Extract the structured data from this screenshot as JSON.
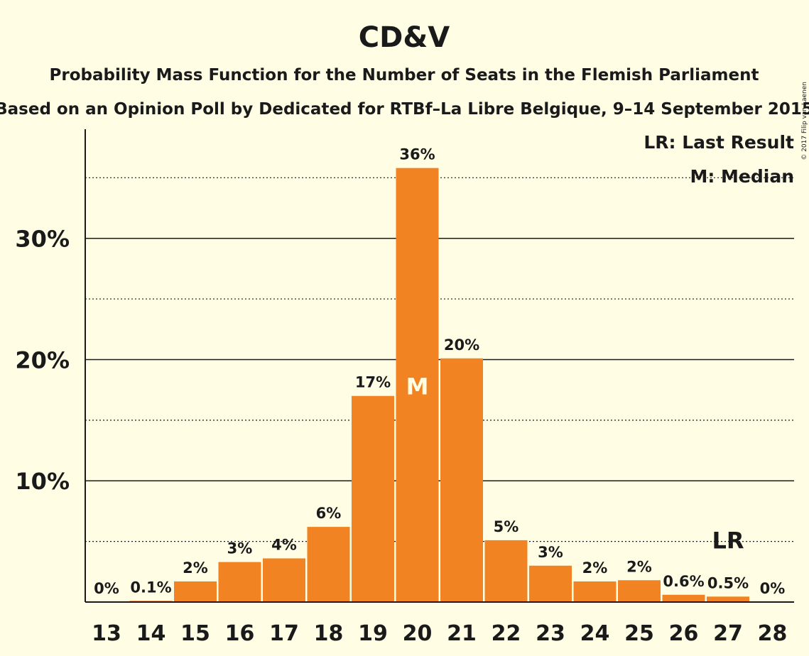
{
  "chart_data": {
    "type": "bar",
    "title": "CD&V",
    "subtitle": "Probability Mass Function for the Number of Seats in the Flemish Parliament",
    "subtitle2": "Based on an Opinion Poll by Dedicated for RTBf–La Libre Belgique, 9–14 September 2015",
    "copyright": "© 2017 Filip van Laenen",
    "categories": [
      "13",
      "14",
      "15",
      "16",
      "17",
      "18",
      "19",
      "20",
      "21",
      "22",
      "23",
      "24",
      "25",
      "26",
      "27",
      "28"
    ],
    "values": [
      0,
      0.1,
      1.7,
      3.3,
      3.6,
      6.2,
      17.0,
      35.8,
      20.1,
      5.1,
      3.0,
      1.7,
      1.8,
      0.6,
      0.45,
      0
    ],
    "data_labels": [
      "0%",
      "0.1%",
      "2%",
      "3%",
      "4%",
      "6%",
      "17%",
      "36%",
      "20%",
      "5%",
      "3%",
      "2%",
      "2%",
      "0.6%",
      "0.5%",
      "0%"
    ],
    "ylim": [
      0,
      39
    ],
    "yticks_major": [
      10,
      20,
      30
    ],
    "ytick_labels": [
      "10%",
      "20%",
      "30%"
    ],
    "yticks_minor": [
      5,
      15,
      25,
      35
    ],
    "bar_color": "#f28322",
    "median": {
      "category": "20",
      "label": "M"
    },
    "last_result": {
      "category": "27",
      "label": "LR",
      "value": 5
    },
    "legend": {
      "position": "top-right",
      "items": [
        "LR: Last Result",
        "M: Median"
      ]
    },
    "xlabel": "",
    "ylabel": ""
  }
}
